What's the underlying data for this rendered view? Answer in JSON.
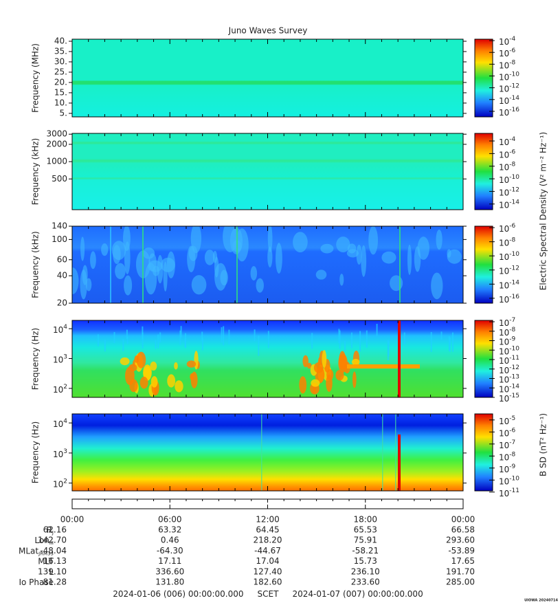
{
  "title": "Juno Waves Survey",
  "panels": [
    {
      "ylabel": "Frequency (MHz)",
      "yscale": "linear",
      "ylim": [
        3.3,
        41
      ],
      "yticks": [
        {
          "value": 40,
          "label": "40."
        },
        {
          "value": 35,
          "label": "35."
        },
        {
          "value": 30,
          "label": "30."
        },
        {
          "value": 25,
          "label": "25."
        },
        {
          "value": 20,
          "label": "20."
        },
        {
          "value": 15,
          "label": "15."
        },
        {
          "value": 10,
          "label": "10."
        },
        {
          "value": 5,
          "label": "5."
        }
      ],
      "colorbar": {
        "lim": [
          1.15e-17,
          0.000174
        ],
        "ticks": [
          {
            "value": 0.0001,
            "base": "10",
            "exponent": "-4"
          },
          {
            "value": 1e-06,
            "base": "10",
            "exponent": "-6"
          },
          {
            "value": 1e-08,
            "base": "10",
            "exponent": "-8"
          },
          {
            "value": 1e-10,
            "base": "10",
            "exponent": "-10"
          },
          {
            "value": 1e-12,
            "base": "10",
            "exponent": "-12"
          },
          {
            "value": 1e-14,
            "base": "10",
            "exponent": "-14"
          },
          {
            "value": 1e-16,
            "base": "10",
            "exponent": "-16"
          }
        ]
      }
    },
    {
      "ylabel": "Frequency (kHz)",
      "yscale": "log",
      "ylim": [
        146,
        3100
      ],
      "yticks": [
        3000,
        2000,
        1000,
        500
      ],
      "colorbar": {
        "lim": [
          1.26e-15,
          0.0016
        ],
        "ticks": [
          {
            "value": 0.0001,
            "base": "10",
            "exponent": "-4"
          },
          {
            "value": 1e-06,
            "base": "10",
            "exponent": "-6"
          },
          {
            "value": 1e-08,
            "base": "10",
            "exponent": "-8"
          },
          {
            "value": 1e-10,
            "base": "10",
            "exponent": "-10"
          },
          {
            "value": 1e-12,
            "base": "10",
            "exponent": "-12"
          },
          {
            "value": 1e-14,
            "base": "10",
            "exponent": "-14"
          }
        ]
      }
    },
    {
      "ylabel": "Frequency (kHz)",
      "yscale": "log",
      "ylim": [
        20,
        140
      ],
      "yticks": [
        140,
        100,
        60,
        40,
        20
      ],
      "colorbar": {
        "lim": [
          2e-17,
          1.6e-06
        ],
        "ticks": [
          {
            "value": 1e-06,
            "base": "10",
            "exponent": "-6"
          },
          {
            "value": 1e-08,
            "base": "10",
            "exponent": "-8"
          },
          {
            "value": 1e-10,
            "base": "10",
            "exponent": "-10"
          },
          {
            "value": 1e-12,
            "base": "10",
            "exponent": "-12"
          },
          {
            "value": 1e-14,
            "base": "10",
            "exponent": "-14"
          },
          {
            "value": 1e-16,
            "base": "10",
            "exponent": "-16"
          }
        ]
      }
    },
    {
      "ylabel": "Frequency (Hz)",
      "yscale": "log",
      "ylim": [
        50,
        19000
      ],
      "yticks": [
        {
          "value": 10000,
          "base": "10",
          "exponent": "4"
        },
        {
          "value": 1000,
          "base": "10",
          "exponent": "3"
        },
        {
          "value": 100,
          "base": "10",
          "exponent": "2"
        }
      ],
      "colorbar": {
        "lim": [
          1e-15,
          1.4e-07
        ],
        "ticks": [
          {
            "value": 1e-07,
            "base": "10",
            "exponent": "-7"
          },
          {
            "value": 1e-08,
            "base": "10",
            "exponent": "-8"
          },
          {
            "value": 1e-09,
            "base": "10",
            "exponent": "-9"
          },
          {
            "value": 1e-10,
            "base": "10",
            "exponent": "-10"
          },
          {
            "value": 1e-11,
            "base": "10",
            "exponent": "-11"
          },
          {
            "value": 1e-12,
            "base": "10",
            "exponent": "-12"
          },
          {
            "value": 1e-13,
            "base": "10",
            "exponent": "-13"
          },
          {
            "value": 1e-14,
            "base": "10",
            "exponent": "-14"
          },
          {
            "value": 1e-15,
            "base": "10",
            "exponent": "-15"
          }
        ]
      }
    },
    {
      "ylabel": "Frequency (Hz)",
      "yscale": "log",
      "ylim": [
        55,
        20000
      ],
      "yticks": [
        {
          "value": 10000,
          "base": "10",
          "exponent": "4"
        },
        {
          "value": 1000,
          "base": "10",
          "exponent": "3"
        },
        {
          "value": 100,
          "base": "10",
          "exponent": "2"
        }
      ],
      "colorbar": {
        "lim": [
          1.26e-11,
          3.2e-05
        ],
        "ticks": [
          {
            "value": 1e-05,
            "base": "10",
            "exponent": "-5"
          },
          {
            "value": 1e-06,
            "base": "10",
            "exponent": "-6"
          },
          {
            "value": 1e-07,
            "base": "10",
            "exponent": "-7"
          },
          {
            "value": 1e-08,
            "base": "10",
            "exponent": "-8"
          },
          {
            "value": 1e-09,
            "base": "10",
            "exponent": "-9"
          },
          {
            "value": 1e-10,
            "base": "10",
            "exponent": "-10"
          },
          {
            "value": 1e-11,
            "base": "10",
            "exponent": "-11"
          }
        ]
      }
    }
  ],
  "colorbar_labels": [
    "Electric Spectral Density (V² m⁻² Hz⁻¹)",
    "B SD (nT² Hz⁻¹)"
  ],
  "time_axis": {
    "xlim": [
      0,
      24
    ],
    "ticks": [
      {
        "value": 0,
        "label": "00:00"
      },
      {
        "value": 6,
        "label": "06:00"
      },
      {
        "value": 12,
        "label": "12:00"
      },
      {
        "value": 18,
        "label": "18:00"
      },
      {
        "value": 24,
        "label": "00:00"
      }
    ]
  },
  "ephemeris": [
    {
      "label": {
        "text": "R",
        "sub": "J"
      },
      "values": [
        "62.16",
        "63.32",
        "64.45",
        "65.53",
        "66.58"
      ]
    },
    {
      "label": {
        "text": "Lon",
        "sub": "III"
      },
      "values": [
        "142.70",
        "0.46",
        "218.20",
        "75.91",
        "293.60"
      ]
    },
    {
      "label": {
        "text": "MLat",
        "sub": "JRM33"
      },
      "values": [
        "-48.04",
        "-64.30",
        "-44.67",
        "-58.21",
        "-53.89"
      ]
    },
    {
      "label": {
        "text": "MLT"
      },
      "values": [
        "16.13",
        "17.11",
        "17.04",
        "15.73",
        "17.65"
      ]
    },
    {
      "label": {
        "text": "L"
      },
      "values": [
        "139.10",
        "336.60",
        "127.40",
        "236.10",
        "191.70"
      ]
    },
    {
      "label": {
        "text": "Io Phase"
      },
      "values": [
        "81.28",
        "131.80",
        "182.60",
        "233.60",
        "285.00"
      ]
    }
  ],
  "footer": {
    "start": "2024-01-06 (006) 00:00:00.000",
    "middle": "SCET",
    "end": "2024-01-07 (007) 00:00:00.000"
  },
  "stamp": "UIOWA 20240714"
}
